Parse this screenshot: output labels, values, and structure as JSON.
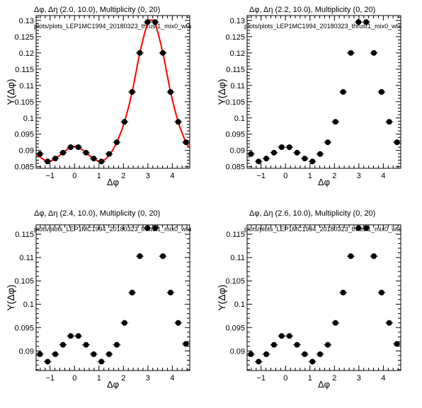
{
  "chart_data": [
    {
      "type": "scatter",
      "title": "Δφ, Δη (2.0, 10.0), Multiplicity (0, 20)",
      "subtitle": "plots/plots_LEP1MC1994_20180323_thrust1_mix0_wta",
      "xlabel": "Δφ",
      "ylabel": "Y(Δφ)",
      "xlim": [
        -1.5708,
        4.7124
      ],
      "ylim": [
        0.0845,
        0.1315
      ],
      "xticks": [
        -1,
        0,
        1,
        2,
        3,
        4
      ],
      "yticks": [
        0.085,
        0.09,
        0.095,
        0.1,
        0.105,
        0.11,
        0.115,
        0.12,
        0.125,
        0.13
      ],
      "ytick_labels": [
        "0.085",
        "0.09",
        "0.095",
        "0.1",
        "0.105",
        "0.11",
        "0.115",
        "0.12",
        "0.125",
        "0.13"
      ],
      "xtick_labels": [
        "−1",
        "0",
        "1",
        "2",
        "3",
        "4"
      ],
      "x": [
        -1.4137,
        -1.0996,
        -0.7854,
        -0.4712,
        -0.1571,
        0.1571,
        0.4712,
        0.7854,
        1.0996,
        1.4137,
        1.7279,
        2.042,
        2.3562,
        2.6704,
        2.9845,
        3.2987,
        3.6128,
        3.927,
        4.2412,
        4.5553
      ],
      "y": [
        0.0889,
        0.0866,
        0.0875,
        0.0893,
        0.091,
        0.091,
        0.0893,
        0.0875,
        0.0866,
        0.0889,
        0.0925,
        0.0988,
        0.108,
        0.12,
        0.1295,
        0.1295,
        0.12,
        0.108,
        0.0988,
        0.0925
      ],
      "fit": {
        "name": "fit",
        "color": "#ff0000",
        "x": [
          -1.5708,
          -1.4137,
          -1.0996,
          -0.7854,
          -0.4712,
          -0.1571,
          0.1571,
          0.4712,
          0.7854,
          1.0996,
          1.4137,
          1.7279,
          2.042,
          2.3562,
          2.6704,
          2.9845,
          3.1416,
          3.2987,
          3.6128,
          3.927,
          4.2412,
          4.5553,
          4.7124
        ],
        "y": [
          0.0888,
          0.088,
          0.0866,
          0.0875,
          0.0893,
          0.091,
          0.091,
          0.0893,
          0.0875,
          0.0866,
          0.0885,
          0.0925,
          0.0988,
          0.108,
          0.12,
          0.129,
          0.13,
          0.129,
          0.12,
          0.108,
          0.0988,
          0.0925,
          0.091
        ]
      }
    },
    {
      "type": "scatter",
      "title": "Δφ, Δη (2.2, 10.0), Multiplicity (0, 20)",
      "subtitle": "plots/plots_LEP1MC1994_20180323_thrust1_mix0_wta",
      "xlabel": "Δφ",
      "ylabel": "Y(Δφ)",
      "xlim": [
        -1.5708,
        4.7124
      ],
      "ylim": [
        0.0845,
        0.1315
      ],
      "xticks": [
        -1,
        0,
        1,
        2,
        3,
        4
      ],
      "yticks": [
        0.085,
        0.09,
        0.095,
        0.1,
        0.105,
        0.11,
        0.115,
        0.12,
        0.125,
        0.13
      ],
      "ytick_labels": [
        "0.085",
        "0.09",
        "0.095",
        "0.1",
        "0.105",
        "0.11",
        "0.115",
        "0.12",
        "0.125",
        "0.13"
      ],
      "xtick_labels": [
        "−1",
        "0",
        "1",
        "2",
        "3",
        "4"
      ],
      "x": [
        -1.4137,
        -1.0996,
        -0.7854,
        -0.4712,
        -0.1571,
        0.1571,
        0.4712,
        0.7854,
        1.0996,
        1.4137,
        1.7279,
        2.042,
        2.3562,
        2.6704,
        2.9845,
        3.2987,
        3.6128,
        3.927,
        4.2412,
        4.5553
      ],
      "y": [
        0.0889,
        0.0866,
        0.0875,
        0.0893,
        0.091,
        0.091,
        0.0893,
        0.0875,
        0.0866,
        0.0889,
        0.0925,
        0.0988,
        0.108,
        0.12,
        0.1295,
        0.1295,
        0.12,
        0.108,
        0.0988,
        0.0925
      ]
    },
    {
      "type": "scatter",
      "title": "Δφ, Δη (2.4, 10.0), Multiplicity (0, 20)",
      "subtitle": "plots/plots_LEP1MC1994_20180323_thrust1_mix0_wta",
      "xlabel": "Δφ",
      "ylabel": "Y(Δφ)",
      "xlim": [
        -1.5708,
        4.7124
      ],
      "ylim": [
        0.0858,
        0.117
      ],
      "xticks": [
        -1,
        0,
        1,
        2,
        3,
        4
      ],
      "yticks": [
        0.09,
        0.095,
        0.1,
        0.105,
        0.11,
        0.115
      ],
      "ytick_labels": [
        "0.09",
        "0.095",
        "0.1",
        "0.105",
        "0.11",
        "0.115"
      ],
      "xtick_labels": [
        "−1",
        "0",
        "1",
        "2",
        "3",
        "4"
      ],
      "x": [
        -1.4137,
        -1.0996,
        -0.7854,
        -0.4712,
        -0.1571,
        0.1571,
        0.4712,
        0.7854,
        1.0996,
        1.4137,
        1.7279,
        2.042,
        2.3562,
        2.6704,
        2.9845,
        3.2987,
        3.6128,
        3.927,
        4.2412,
        4.5553
      ],
      "y": [
        0.0893,
        0.0877,
        0.0893,
        0.0913,
        0.0932,
        0.0932,
        0.0913,
        0.0893,
        0.0877,
        0.0893,
        0.0913,
        0.096,
        0.1025,
        0.1103,
        0.1163,
        0.1163,
        0.1103,
        0.1025,
        0.096,
        0.0915
      ]
    },
    {
      "type": "scatter",
      "title": "Δφ, Δη (2.6, 10.0), Multiplicity (0, 20)",
      "subtitle": "plots/plots_LEP1MC1994_20180323_thrust1_mix0_wta",
      "xlabel": "Δφ",
      "ylabel": "Y(Δφ)",
      "xlim": [
        -1.5708,
        4.7124
      ],
      "ylim": [
        0.0858,
        0.117
      ],
      "xticks": [
        -1,
        0,
        1,
        2,
        3,
        4
      ],
      "yticks": [
        0.09,
        0.095,
        0.1,
        0.105,
        0.11,
        0.115
      ],
      "ytick_labels": [
        "0.09",
        "0.095",
        "0.1",
        "0.105",
        "0.11",
        "0.115"
      ],
      "xtick_labels": [
        "−1",
        "0",
        "1",
        "2",
        "3",
        "4"
      ],
      "x": [
        -1.4137,
        -1.0996,
        -0.7854,
        -0.4712,
        -0.1571,
        0.1571,
        0.4712,
        0.7854,
        1.0996,
        1.4137,
        1.7279,
        2.042,
        2.3562,
        2.6704,
        2.9845,
        3.2987,
        3.6128,
        3.927,
        4.2412,
        4.5553
      ],
      "y": [
        0.0893,
        0.0877,
        0.0893,
        0.0913,
        0.0932,
        0.0932,
        0.0913,
        0.0893,
        0.0877,
        0.0893,
        0.0913,
        0.096,
        0.1025,
        0.1103,
        0.1163,
        0.1163,
        0.1103,
        0.1025,
        0.096,
        0.0915
      ]
    }
  ]
}
